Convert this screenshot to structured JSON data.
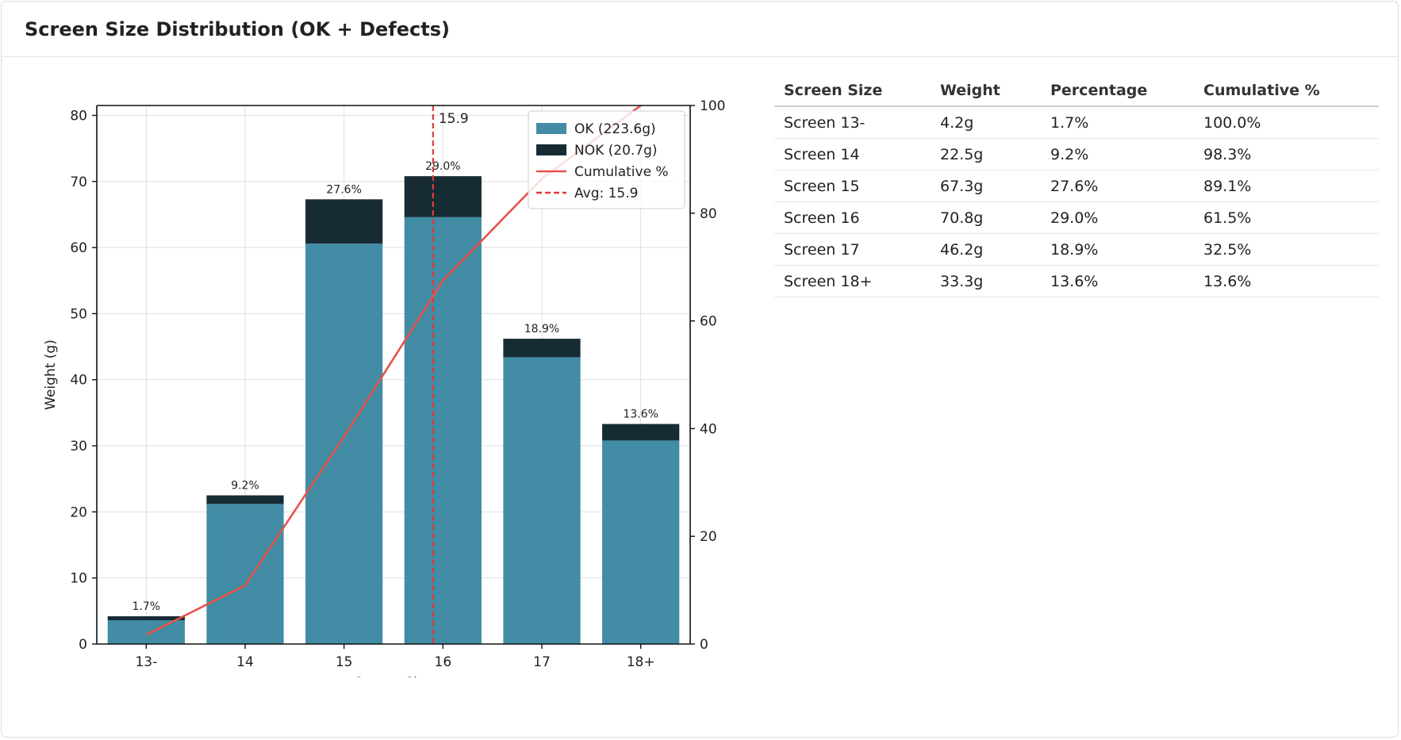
{
  "panel": {
    "title": "Screen Size Distribution (OK + Defects)"
  },
  "table": {
    "headers": [
      "Screen Size",
      "Weight",
      "Percentage",
      "Cumulative %"
    ],
    "rows": [
      [
        "Screen 13-",
        "4.2g",
        "1.7%",
        "100.0%"
      ],
      [
        "Screen 14",
        "22.5g",
        "9.2%",
        "98.3%"
      ],
      [
        "Screen 15",
        "67.3g",
        "27.6%",
        "89.1%"
      ],
      [
        "Screen 16",
        "70.8g",
        "29.0%",
        "61.5%"
      ],
      [
        "Screen 17",
        "46.2g",
        "18.9%",
        "32.5%"
      ],
      [
        "Screen 18+",
        "33.3g",
        "13.6%",
        "13.6%"
      ]
    ]
  },
  "chart_data": {
    "type": "bar",
    "stacked": true,
    "categories": [
      "13-",
      "14",
      "15",
      "16",
      "17",
      "18+"
    ],
    "series": [
      {
        "name": "OK (223.6g)",
        "values": [
          3.6,
          21.2,
          60.6,
          64.6,
          43.4,
          30.8
        ],
        "color": "#428ca5"
      },
      {
        "name": "NOK (20.7g)",
        "values": [
          0.6,
          1.3,
          6.7,
          6.2,
          2.8,
          2.5
        ],
        "color": "#172b34"
      }
    ],
    "bar_labels": [
      "1.7%",
      "9.2%",
      "27.6%",
      "29.0%",
      "18.9%",
      "13.6%"
    ],
    "cumulative": {
      "name": "Cumulative %",
      "values": [
        1.7,
        10.9,
        38.5,
        67.5,
        86.4,
        100.0
      ],
      "color": "#e5534b"
    },
    "avg_line": {
      "name": "Avg: 15.9",
      "value": 15.9,
      "label": "15.9",
      "color": "#e03a3a"
    },
    "xlabel": "Screen Size",
    "ylabel": "Weight (g)",
    "ylim": [
      0,
      81.5
    ],
    "y_ticks": [
      0,
      10,
      20,
      30,
      40,
      50,
      60,
      70,
      80
    ],
    "y2lim": [
      0,
      100
    ],
    "y2_ticks": [
      0,
      20,
      40,
      60,
      80,
      100
    ],
    "grid": true,
    "legend": "top-right"
  }
}
